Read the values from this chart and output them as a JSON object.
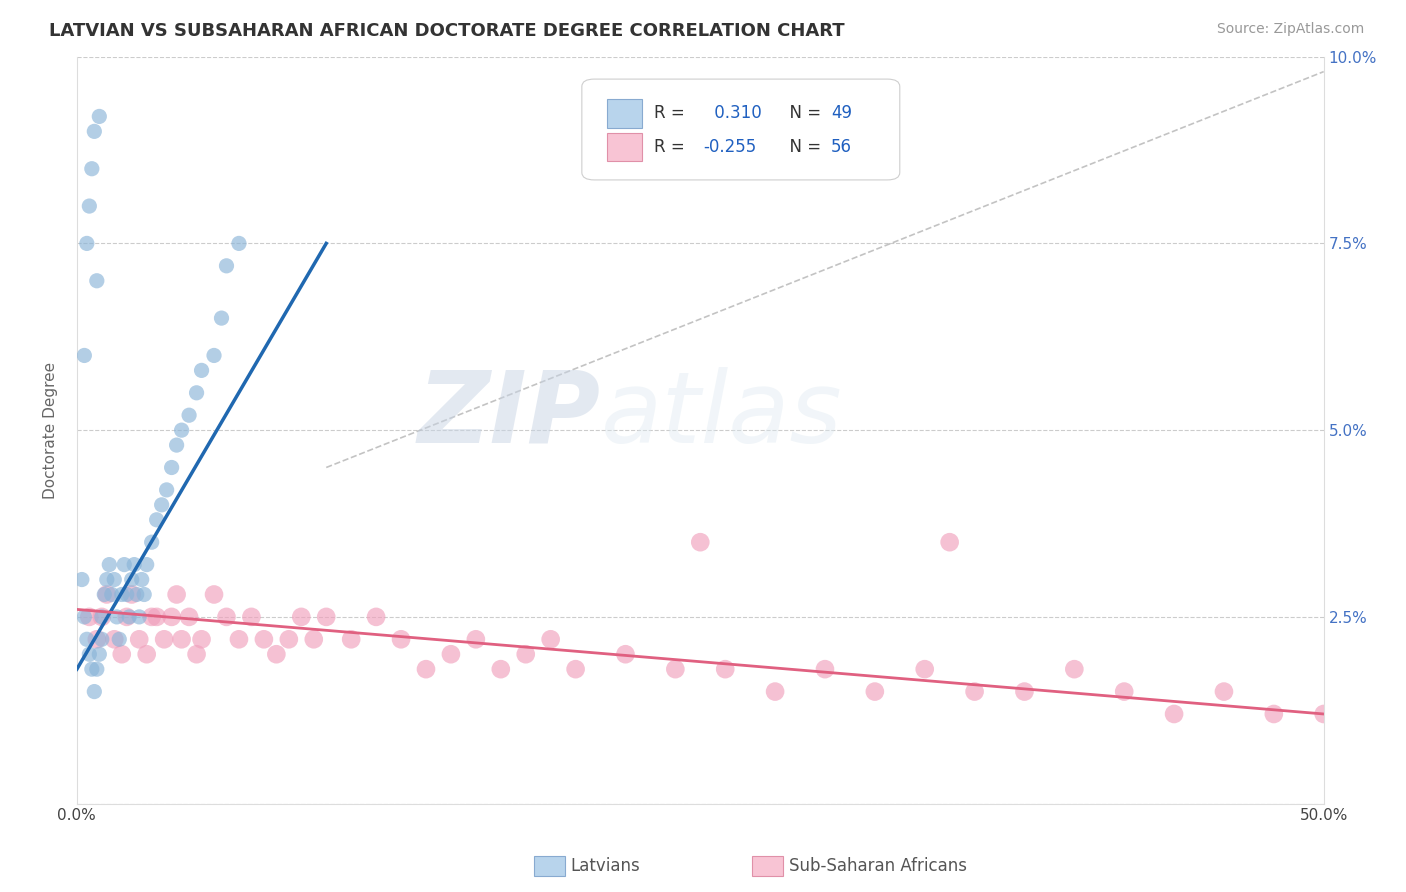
{
  "title": "LATVIAN VS SUBSAHARAN AFRICAN DOCTORATE DEGREE CORRELATION CHART",
  "source": "Source: ZipAtlas.com",
  "xlabel_latvian": "Latvians",
  "xlabel_subsaharan": "Sub-Saharan Africans",
  "ylabel": "Doctorate Degree",
  "xlim": [
    0.0,
    0.5
  ],
  "ylim": [
    0.0,
    0.1
  ],
  "xticks": [
    0.0,
    0.1,
    0.2,
    0.3,
    0.4,
    0.5
  ],
  "xticklabels": [
    "0.0%",
    "",
    "",
    "",
    "",
    "50.0%"
  ],
  "yticks": [
    0.0,
    0.025,
    0.05,
    0.075,
    0.1
  ],
  "ytick_left_labels": [
    "",
    "",
    "",
    "",
    ""
  ],
  "ytick_right_labels": [
    "",
    "2.5%",
    "5.0%",
    "7.5%",
    "10.0%"
  ],
  "latvian_color": "#8ab4d8",
  "subsaharan_color": "#f0a0bc",
  "latvian_line_color": "#2068b0",
  "subsaharan_line_color": "#e06080",
  "legend_box_color_latvian": "#b8d4ec",
  "legend_box_color_subsaharan": "#f8c4d4",
  "R_latvian": 0.31,
  "N_latvian": 49,
  "R_subsaharan": -0.255,
  "N_subsaharan": 56,
  "background_color": "#ffffff",
  "grid_color": "#cccccc",
  "latvian_scatter_x": [
    0.002,
    0.003,
    0.004,
    0.005,
    0.006,
    0.007,
    0.008,
    0.009,
    0.01,
    0.01,
    0.011,
    0.012,
    0.013,
    0.014,
    0.015,
    0.016,
    0.017,
    0.018,
    0.019,
    0.02,
    0.021,
    0.022,
    0.023,
    0.024,
    0.025,
    0.026,
    0.027,
    0.028,
    0.03,
    0.032,
    0.034,
    0.036,
    0.038,
    0.04,
    0.042,
    0.045,
    0.048,
    0.05,
    0.055,
    0.058,
    0.003,
    0.004,
    0.005,
    0.006,
    0.007,
    0.008,
    0.009,
    0.06,
    0.065
  ],
  "latvian_scatter_y": [
    0.03,
    0.025,
    0.022,
    0.02,
    0.018,
    0.015,
    0.018,
    0.02,
    0.022,
    0.025,
    0.028,
    0.03,
    0.032,
    0.028,
    0.03,
    0.025,
    0.022,
    0.028,
    0.032,
    0.028,
    0.025,
    0.03,
    0.032,
    0.028,
    0.025,
    0.03,
    0.028,
    0.032,
    0.035,
    0.038,
    0.04,
    0.042,
    0.045,
    0.048,
    0.05,
    0.052,
    0.055,
    0.058,
    0.06,
    0.065,
    0.06,
    0.075,
    0.08,
    0.085,
    0.09,
    0.07,
    0.092,
    0.072,
    0.075
  ],
  "subsaharan_scatter_x": [
    0.005,
    0.008,
    0.01,
    0.012,
    0.015,
    0.018,
    0.02,
    0.022,
    0.025,
    0.028,
    0.03,
    0.032,
    0.035,
    0.038,
    0.04,
    0.042,
    0.045,
    0.048,
    0.05,
    0.055,
    0.06,
    0.065,
    0.07,
    0.075,
    0.08,
    0.085,
    0.09,
    0.095,
    0.1,
    0.11,
    0.12,
    0.13,
    0.14,
    0.15,
    0.16,
    0.17,
    0.18,
    0.19,
    0.2,
    0.22,
    0.24,
    0.26,
    0.28,
    0.3,
    0.32,
    0.34,
    0.36,
    0.38,
    0.4,
    0.42,
    0.44,
    0.46,
    0.48,
    0.5,
    0.25,
    0.35
  ],
  "subsaharan_scatter_y": [
    0.025,
    0.022,
    0.025,
    0.028,
    0.022,
    0.02,
    0.025,
    0.028,
    0.022,
    0.02,
    0.025,
    0.025,
    0.022,
    0.025,
    0.028,
    0.022,
    0.025,
    0.02,
    0.022,
    0.028,
    0.025,
    0.022,
    0.025,
    0.022,
    0.02,
    0.022,
    0.025,
    0.022,
    0.025,
    0.022,
    0.025,
    0.022,
    0.018,
    0.02,
    0.022,
    0.018,
    0.02,
    0.022,
    0.018,
    0.02,
    0.018,
    0.018,
    0.015,
    0.018,
    0.015,
    0.018,
    0.015,
    0.015,
    0.018,
    0.015,
    0.012,
    0.015,
    0.012,
    0.012,
    0.035,
    0.035
  ],
  "latvian_line_x": [
    0.0,
    0.1
  ],
  "latvian_line_y": [
    0.018,
    0.075
  ],
  "subsaharan_line_x": [
    0.0,
    0.5
  ],
  "subsaharan_line_y": [
    0.026,
    0.012
  ],
  "diag_line_x": [
    0.1,
    0.5
  ],
  "diag_line_y": [
    0.045,
    0.098
  ]
}
